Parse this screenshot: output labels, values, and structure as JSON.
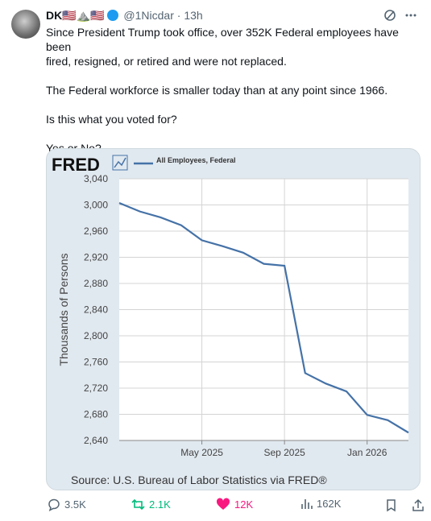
{
  "header": {
    "name": "DK🇺🇸⛰️🇺🇸",
    "handle": "@1Nicdar",
    "time": "13h"
  },
  "body": [
    "Since President Trump took office, over 352K Federal employees have been",
    "fired, resigned, or retired and were not replaced.",
    "The Federal workforce is smaller today than at any point since 1966.",
    "Is this what you voted for?",
    "Yes or No?"
  ],
  "stats": {
    "replies": "3.5K",
    "reposts": "2.1K",
    "likes": "12K",
    "views": "162K"
  },
  "chart_data": {
    "type": "line",
    "logo": "FRED",
    "y_label": "Thousands of Persons",
    "source": "Source: U.S. Bureau of Labor Statistics via FRED®",
    "categories": [
      null,
      null,
      null,
      null,
      "May 2025",
      null,
      null,
      null,
      "Sep 2025",
      null,
      null,
      null,
      "Jan 2026",
      null,
      null
    ],
    "series": [
      {
        "name": "All Employees, Federal",
        "color": "#4572a7",
        "values": [
          3003,
          2990,
          2981,
          2969,
          2946,
          2937,
          2927,
          2910,
          2907,
          2743,
          2727,
          2715,
          2679,
          2671,
          2652
        ]
      }
    ],
    "ylim": [
      2640,
      3040
    ],
    "yticks": [
      {
        "value": 2640,
        "label": "2,640"
      },
      {
        "value": 2680,
        "label": "2,680"
      },
      {
        "value": 2720,
        "label": "2,720"
      },
      {
        "value": 2760,
        "label": "2,760"
      },
      {
        "value": 2800,
        "label": "2,800"
      },
      {
        "value": 2840,
        "label": "2,840"
      },
      {
        "value": 2880,
        "label": "2,880"
      },
      {
        "value": 2920,
        "label": "2,920"
      },
      {
        "value": 2960,
        "label": "2,960"
      },
      {
        "value": 3000,
        "label": "3,000"
      },
      {
        "value": 3040,
        "label": "3,040"
      }
    ],
    "grid": true
  }
}
